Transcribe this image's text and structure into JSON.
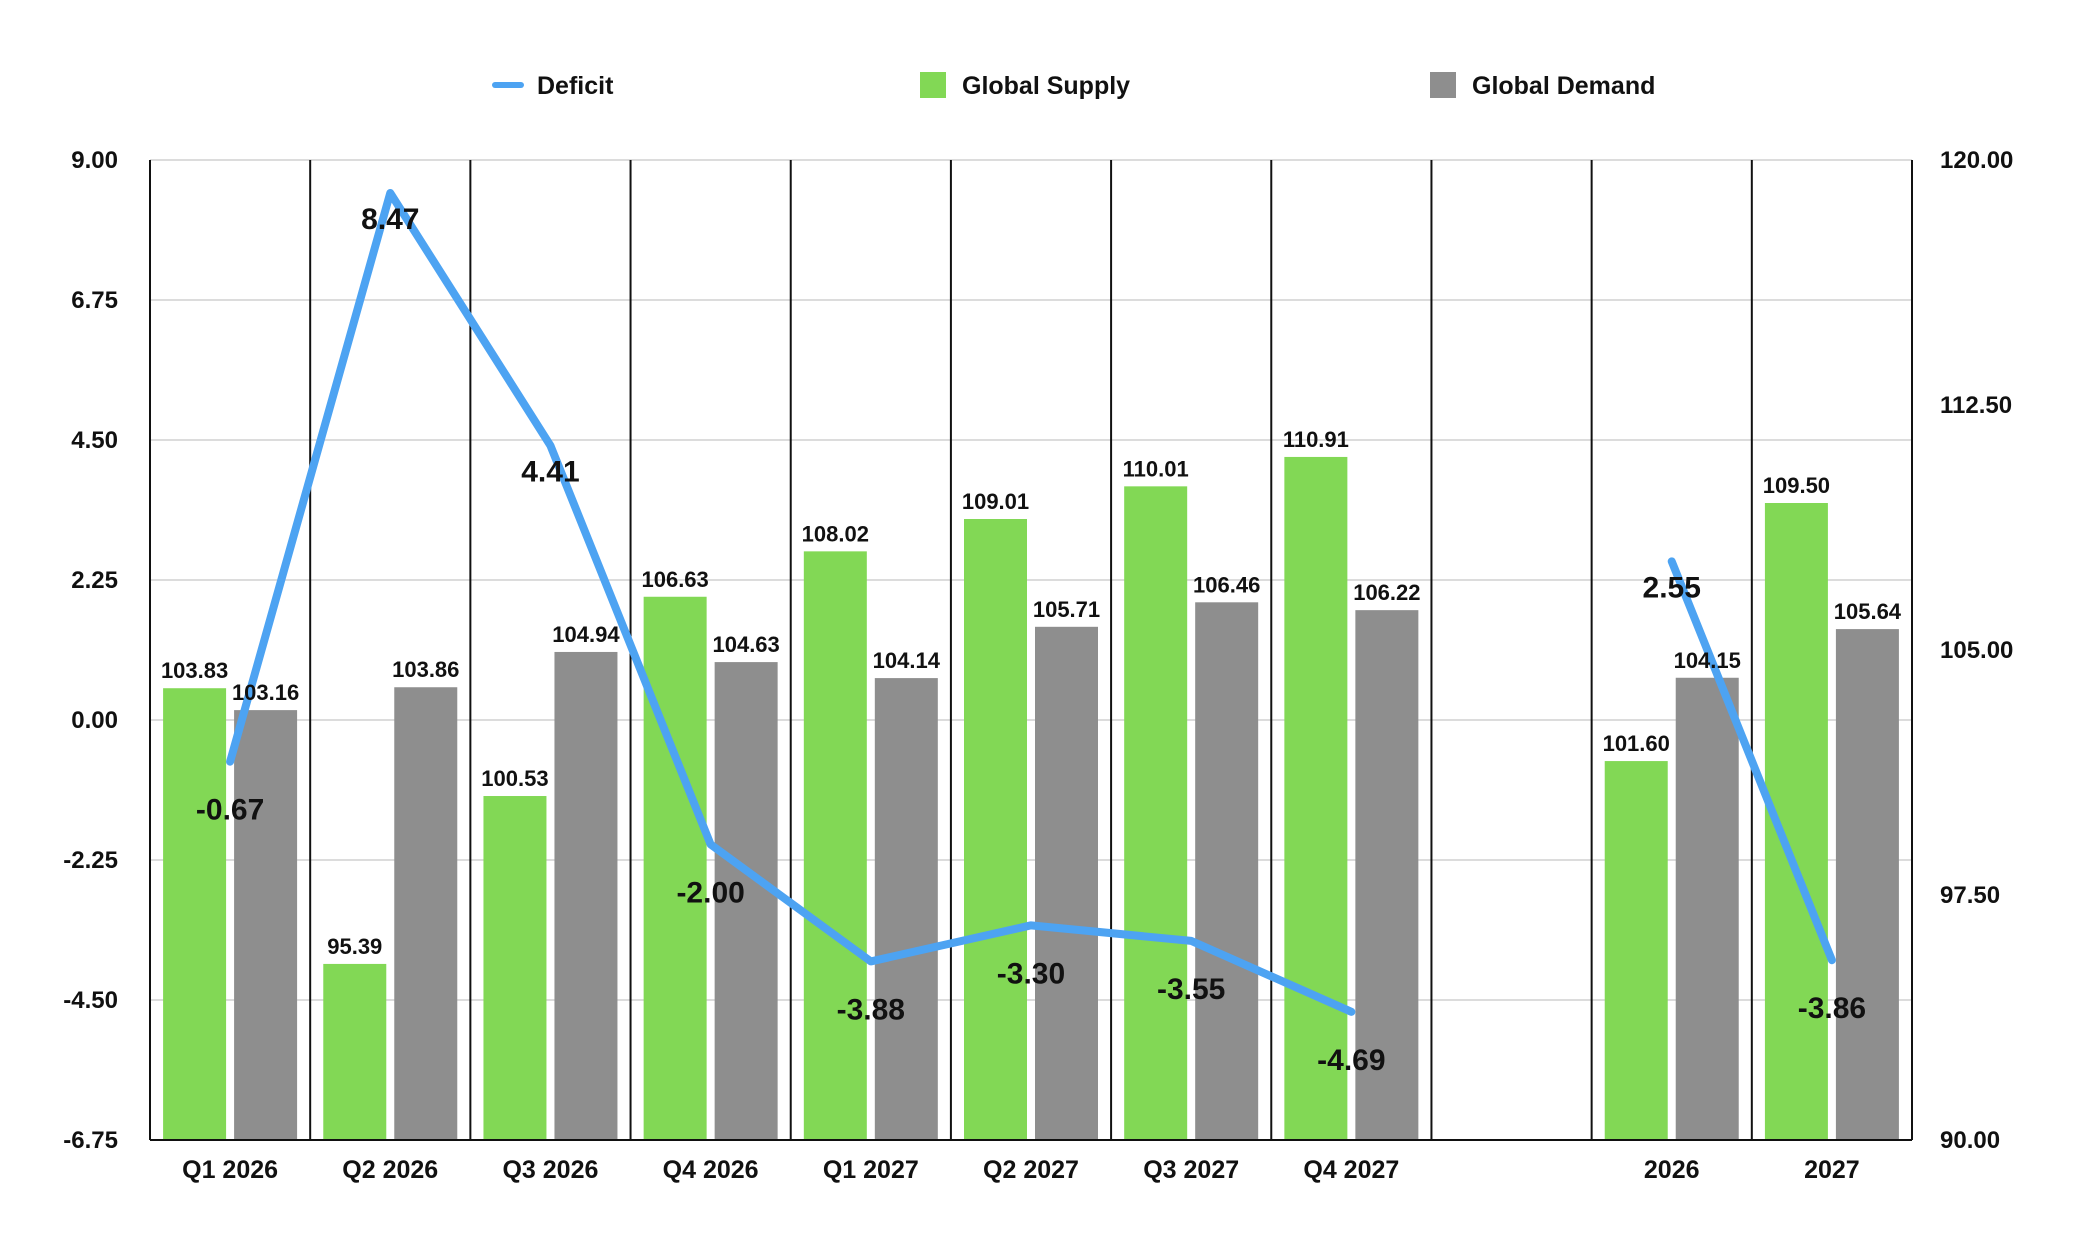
{
  "chart_data": {
    "type": "bar",
    "categories": [
      "Q1 2026",
      "Q2 2026",
      "Q3 2026",
      "Q4 2026",
      "Q1 2027",
      "Q2 2027",
      "Q3 2027",
      "Q4 2027",
      "",
      "2026",
      "2027"
    ],
    "series": [
      {
        "name": "Global Supply",
        "type": "bar",
        "axis": "right",
        "color": "#82d855",
        "values": [
          103.83,
          95.39,
          100.53,
          106.63,
          108.02,
          109.01,
          110.01,
          110.91,
          null,
          101.6,
          109.5
        ]
      },
      {
        "name": "Global Demand",
        "type": "bar",
        "axis": "right",
        "color": "#8e8e8e",
        "values": [
          103.16,
          103.86,
          104.94,
          104.63,
          104.14,
          105.71,
          106.46,
          106.22,
          null,
          104.15,
          105.64
        ]
      },
      {
        "name": "Deficit",
        "type": "line",
        "axis": "left",
        "color": "#4da3f2",
        "values": [
          -0.67,
          8.47,
          4.41,
          -2.0,
          -3.88,
          -3.3,
          -3.55,
          -4.69,
          null,
          2.55,
          -3.86
        ]
      }
    ],
    "y_left": {
      "ylim": [
        -6.75,
        9.0
      ],
      "ticks": [
        -6.75,
        -4.5,
        -2.25,
        0.0,
        2.25,
        4.5,
        6.75,
        9.0
      ],
      "tick_labels": [
        "-6.75",
        "-4.50",
        "-2.25",
        "0.00",
        "2.25",
        "4.50",
        "6.75",
        "9.00"
      ]
    },
    "y_right": {
      "ylim": [
        90.0,
        120.0
      ],
      "ticks": [
        90.0,
        97.5,
        105.0,
        112.5,
        120.0
      ],
      "tick_labels": [
        "90.00",
        "97.50",
        "105.00",
        "112.50",
        "120.00"
      ]
    },
    "legend": {
      "position": "top",
      "entries": [
        "Deficit",
        "Global Supply",
        "Global Demand"
      ]
    },
    "grid": true,
    "title": "",
    "xlabel": "",
    "ylabel": ""
  }
}
